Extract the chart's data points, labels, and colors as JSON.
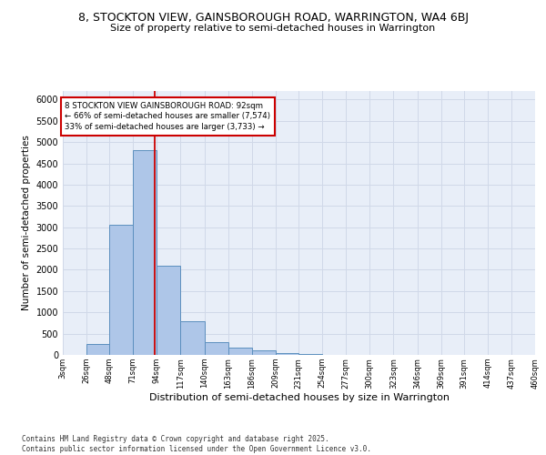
{
  "title1": "8, STOCKTON VIEW, GAINSBOROUGH ROAD, WARRINGTON, WA4 6BJ",
  "title2": "Size of property relative to semi-detached houses in Warrington",
  "xlabel": "Distribution of semi-detached houses by size in Warrington",
  "ylabel": "Number of semi-detached properties",
  "footnote": "Contains HM Land Registry data © Crown copyright and database right 2025.\nContains public sector information licensed under the Open Government Licence v3.0.",
  "bin_labels": [
    "3sqm",
    "26sqm",
    "48sqm",
    "71sqm",
    "94sqm",
    "117sqm",
    "140sqm",
    "163sqm",
    "186sqm",
    "209sqm",
    "231sqm",
    "254sqm",
    "277sqm",
    "300sqm",
    "323sqm",
    "346sqm",
    "369sqm",
    "391sqm",
    "414sqm",
    "437sqm",
    "460sqm"
  ],
  "bin_edges": [
    3,
    26,
    48,
    71,
    94,
    117,
    140,
    163,
    186,
    209,
    231,
    254,
    277,
    300,
    323,
    346,
    369,
    391,
    414,
    437,
    460
  ],
  "bar_heights": [
    0,
    250,
    3050,
    4800,
    2100,
    800,
    300,
    175,
    100,
    50,
    20,
    10,
    5,
    2,
    1,
    1,
    0,
    0,
    0,
    0
  ],
  "bar_color": "#aec6e8",
  "bar_edge_color": "#5b8fbe",
  "grid_color": "#d0d8e8",
  "background_color": "#e8eef8",
  "red_line_x": 92,
  "annotation_text": "8 STOCKTON VIEW GAINSBOROUGH ROAD: 92sqm\n← 66% of semi-detached houses are smaller (7,574)\n33% of semi-detached houses are larger (3,733) →",
  "annotation_box_color": "#ffffff",
  "annotation_border_color": "#cc0000",
  "ylim": [
    0,
    6200
  ],
  "yticks": [
    0,
    500,
    1000,
    1500,
    2000,
    2500,
    3000,
    3500,
    4000,
    4500,
    5000,
    5500,
    6000
  ]
}
